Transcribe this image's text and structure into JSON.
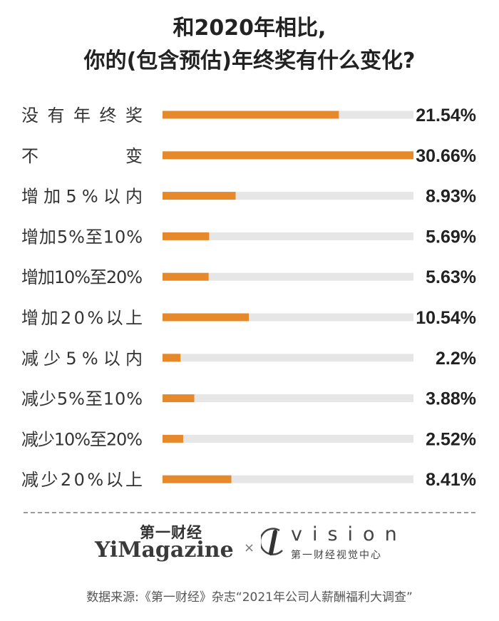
{
  "chart_data": {
    "type": "bar",
    "orientation": "horizontal",
    "title_line1": "和2020年相比,",
    "title_line2": "你的(包含预估)年终奖有什么变化?",
    "categories": [
      "没有年终奖",
      "不　　　　变",
      "增加5%以内",
      "增加5%至10%",
      "增加10%至20%",
      "增加20%以上",
      "减少5%以内",
      "减少5%至10%",
      "减少10%至20%",
      "减少20%以上"
    ],
    "values": [
      21.54,
      30.66,
      8.93,
      5.69,
      5.63,
      10.54,
      2.2,
      3.88,
      2.52,
      8.41
    ],
    "value_labels": [
      "21.54%",
      "30.66%",
      "8.93%",
      "5.69%",
      "5.63%",
      "10.54%",
      "2.2%",
      "3.88%",
      "2.52%",
      "8.41%"
    ],
    "xlim": [
      0,
      30.66
    ],
    "bar_color": "#e6892b",
    "track_color": "#e6e6e6"
  },
  "footer": {
    "logo_cn": "第一财经",
    "logo_en": "YiMagazine",
    "separator": "×",
    "vision_word": "vision",
    "vision_cn": "第一财经视觉中心",
    "source": "数据来源:《第一财经》杂志“2021年公司人薪酬福利大调查”"
  }
}
